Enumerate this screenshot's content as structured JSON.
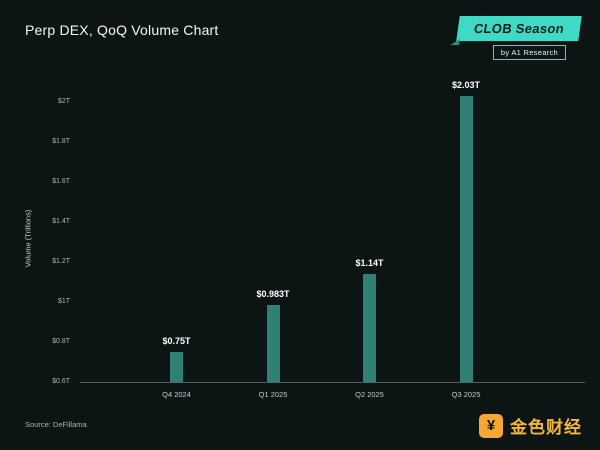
{
  "header": {
    "title": "Perp DEX, QoQ Volume Chart",
    "badge_primary": "CLOB Season",
    "badge_secondary": "by A1 Research"
  },
  "chart_data": {
    "type": "bar",
    "title": "Perp DEX, QoQ Volume Chart",
    "categories": [
      "Q4 2024",
      "Q1 2025",
      "Q2 2025",
      "Q3 2025"
    ],
    "values": [
      0.75,
      0.983,
      1.14,
      2.03
    ],
    "value_labels": [
      "$0.75T",
      "$0.983T",
      "$1.14T",
      "$2.03T"
    ],
    "xlabel": "",
    "ylabel": "Volume (Trillions)",
    "ylim": [
      0.6,
      2.0
    ],
    "yticks": [
      0.6,
      0.8,
      1.0,
      1.2,
      1.4,
      1.6,
      1.8,
      2.0
    ],
    "ytick_labels": [
      "$0.6T",
      "$0.8T",
      "$1T",
      "$1.2T",
      "$1.4T",
      "$1.6T",
      "$1.8T",
      "$2T"
    ],
    "bar_color": "#2e8174",
    "grid": false,
    "legend": false
  },
  "footer": {
    "source": "Source: DeFillama",
    "logo_symbol": "¥",
    "logo_text": "金色财经"
  },
  "colors": {
    "background": "#0d1414",
    "badge_teal": "#3fd9c5",
    "bar_teal": "#2e8174",
    "logo_gold": "#f5b63e"
  }
}
